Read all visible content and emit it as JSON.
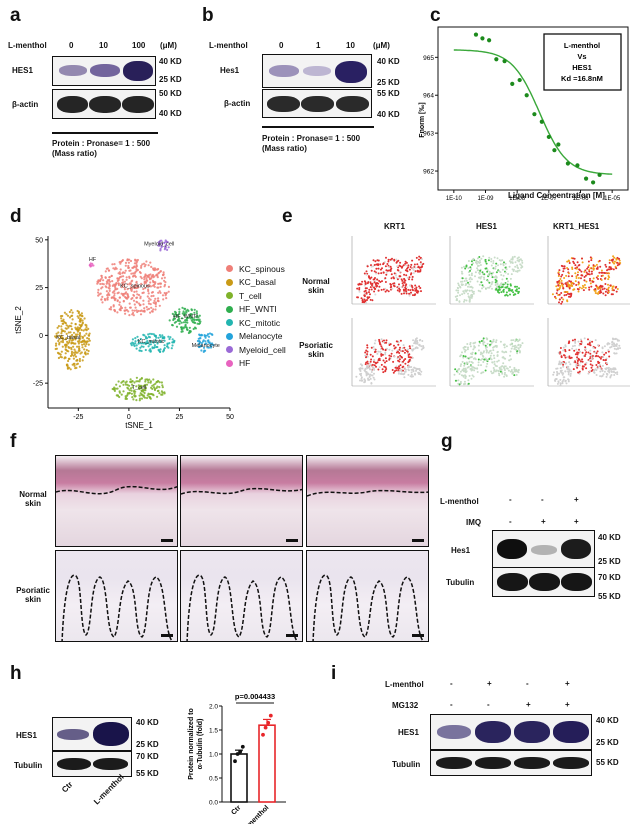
{
  "panel_a": {
    "letter": "a",
    "treatment_label": "L-menthol",
    "doses": [
      "0",
      "10",
      "100"
    ],
    "dose_unit": "(μM)",
    "rows": [
      {
        "label": "HES1",
        "markers": [
          "40 KD",
          "25 KD"
        ],
        "intensities": [
          0.55,
          0.7,
          1.0
        ]
      },
      {
        "label": "β-actin",
        "markers": [
          "50 KD",
          "40 KD"
        ],
        "intensities": [
          0.9,
          0.9,
          0.9
        ]
      }
    ],
    "ratio_line1": "Protein : Pronase= 1 : 500",
    "ratio_line2": "(Mass ratio)"
  },
  "panel_b": {
    "letter": "b",
    "treatment_label": "L-menthol",
    "doses": [
      "0",
      "1",
      "10"
    ],
    "dose_unit": "(μM)",
    "rows": [
      {
        "label": "Hes1",
        "markers": [
          "40 KD",
          "25 KD"
        ],
        "intensities": [
          0.45,
          0.35,
          0.95
        ]
      },
      {
        "label": "β-actin",
        "markers": [
          "55 KD",
          "40 KD"
        ],
        "intensities": [
          0.9,
          0.9,
          0.9
        ]
      }
    ],
    "ratio_line1": "Protein : Pronase= 1 : 500",
    "ratio_line2": "(Mass ratio)"
  },
  "panel_c": {
    "letter": "c",
    "legend_line1": "L-menthol",
    "legend_line2": "Vs",
    "legend_line3": "HES1",
    "legend_line4": "Kd =16.8nM",
    "colors": {
      "curve": "#3aa83a",
      "points": "#1c8a1c"
    }
  },
  "panel_d": {
    "letter": "d",
    "cluster_labels": [
      "Myeloid_cell",
      "HF",
      "KC_spinous",
      "HF_WNTI",
      "KC_basal",
      "KC_mitotic",
      "Melanocyte",
      "T_cell"
    ],
    "legend": [
      {
        "name": "KC_spinous",
        "color": "#ef7f78"
      },
      {
        "name": "KC_basal",
        "color": "#c99a16"
      },
      {
        "name": "T_cell",
        "color": "#7fb22a"
      },
      {
        "name": "HF_WNTI",
        "color": "#2fae4f"
      },
      {
        "name": "KC_mitotic",
        "color": "#22b5b0"
      },
      {
        "name": "Melanocyte",
        "color": "#23a3db"
      },
      {
        "name": "Myeloid_cell",
        "color": "#9a6ad6"
      },
      {
        "name": "HF",
        "color": "#e863bf"
      }
    ]
  },
  "panel_e": {
    "letter": "e",
    "columns": [
      "KRT1",
      "HES1",
      "KRT1_HES1"
    ],
    "rows": [
      "Normal skin",
      "Psoriatic skin"
    ]
  },
  "panel_f": {
    "letter": "f",
    "rows": [
      "Normal skin",
      "Psoriatic skin"
    ]
  },
  "panel_g": {
    "letter": "g",
    "row_labels": [
      "L-menthol",
      "IMQ"
    ],
    "signs": [
      [
        "-",
        "-",
        "+"
      ],
      [
        "-",
        "+",
        "+"
      ]
    ],
    "blots": [
      {
        "label": "Hes1",
        "markers": [
          "40 KD",
          "25 KD"
        ],
        "intensities": [
          1.0,
          0.25,
          0.85
        ]
      },
      {
        "label": "Tubulin",
        "markers": [
          "70 KD",
          "55 KD"
        ],
        "intensities": [
          0.95,
          0.95,
          0.95
        ]
      }
    ]
  },
  "panel_h": {
    "letter": "h",
    "blots": [
      {
        "label": "HES1",
        "markers": [
          "40 KD",
          "25 KD"
        ],
        "intensities": [
          0.55,
          1.0
        ]
      },
      {
        "label": "Tubulin",
        "markers": [
          "70 KD",
          "55 KD"
        ],
        "intensities": [
          0.9,
          0.9
        ]
      }
    ],
    "lanes": [
      "Ctr",
      "L-menthol"
    ],
    "pvalue": "p=0.004433",
    "ylabel_line1": "Protein normalized to",
    "ylabel_line2": "α-Tubulin (fold)",
    "colors": {
      "ctr": "#111111",
      "treated": "#e8262a"
    }
  },
  "panel_i": {
    "letter": "i",
    "row_labels": [
      "L-menthol",
      "MG132"
    ],
    "signs": [
      [
        "-",
        "+",
        "-",
        "+"
      ],
      [
        "-",
        "-",
        "+",
        "+"
      ]
    ],
    "blots": [
      {
        "label": "HES1",
        "markers": [
          "40 KD",
          "25 KD"
        ],
        "intensities": [
          0.5,
          0.9,
          0.9,
          0.95
        ]
      },
      {
        "label": "Tubulin",
        "markers": [
          "55 KD"
        ],
        "intensities": [
          0.9,
          0.9,
          0.9,
          0.9
        ]
      }
    ]
  },
  "chart_data": [
    {
      "type": "scatter",
      "title": "",
      "xlabel": "Ligand Concentration [M]",
      "ylabel": "Fnorm [‰]",
      "xscale": "log",
      "xticks": [
        "1E-10",
        "1E-09",
        "1E-08",
        "1E-07",
        "1E-06",
        "1E-05"
      ],
      "yticks": [
        "962",
        "963",
        "964",
        "965"
      ],
      "ylim": [
        961.5,
        965.8
      ],
      "points": [
        {
          "x": 5e-10,
          "y": 965.6
        },
        {
          "x": 8e-10,
          "y": 965.5
        },
        {
          "x": 1.3e-09,
          "y": 965.45
        },
        {
          "x": 2.2e-09,
          "y": 964.95
        },
        {
          "x": 4e-09,
          "y": 964.9
        },
        {
          "x": 7e-09,
          "y": 964.3
        },
        {
          "x": 1.2e-08,
          "y": 964.4
        },
        {
          "x": 2e-08,
          "y": 964.0
        },
        {
          "x": 3.5e-08,
          "y": 963.5
        },
        {
          "x": 6e-08,
          "y": 963.3
        },
        {
          "x": 1e-07,
          "y": 962.9
        },
        {
          "x": 1.5e-07,
          "y": 962.55
        },
        {
          "x": 2e-07,
          "y": 962.7
        },
        {
          "x": 4e-07,
          "y": 962.2
        },
        {
          "x": 8e-07,
          "y": 962.15
        },
        {
          "x": 1.5e-06,
          "y": 961.8
        },
        {
          "x": 2.5e-06,
          "y": 961.7
        },
        {
          "x": 4e-06,
          "y": 961.9
        }
      ],
      "fit": {
        "top": 965.2,
        "bottom": 961.9,
        "kd": 1.68e-08
      }
    },
    {
      "type": "scatter",
      "title": "",
      "xlabel": "tSNE_1",
      "ylabel": "tSNE_2",
      "xticks": [
        -25,
        0,
        25,
        50
      ],
      "yticks": [
        -25,
        0,
        25,
        50
      ],
      "xlim": [
        -40,
        50
      ],
      "ylim": [
        -38,
        52
      ]
    },
    {
      "type": "bar",
      "categories": [
        "Ctr",
        "L-menthol"
      ],
      "values": [
        1.0,
        1.6
      ],
      "errors": [
        0.08,
        0.12
      ],
      "ylim": [
        0,
        2.0
      ],
      "yticks": [
        "0.0",
        "0.5",
        "1.0",
        "1.5",
        "2.0"
      ],
      "ylabel": "Protein normalized to α-Tubulin (fold)",
      "points": [
        [
          0.85,
          1.0,
          1.05,
          1.15
        ],
        [
          1.4,
          1.55,
          1.65,
          1.8
        ]
      ],
      "annotation": "p=0.004433"
    }
  ]
}
